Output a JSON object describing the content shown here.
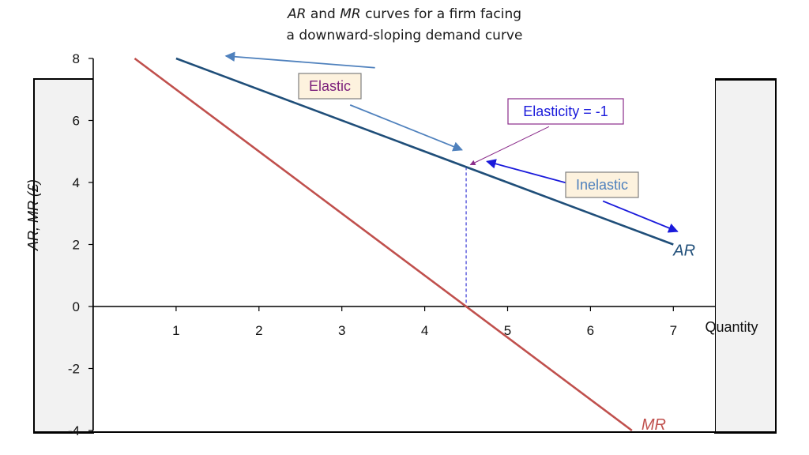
{
  "title": {
    "line1_ar": "AR",
    "line1_and": " and ",
    "line1_mr": "MR",
    "line1_rest": " curves for a firm facing",
    "line2": "a downward-sloping demand curve"
  },
  "chart_data": {
    "type": "line",
    "xlabel": "Quantity",
    "ylabel": "AR, MR (£)",
    "xlim": [
      0,
      7.5
    ],
    "ylim": [
      -4,
      8
    ],
    "x_ticks": [
      "1",
      "2",
      "3",
      "4",
      "5",
      "6",
      "7"
    ],
    "y_ticks": [
      "8",
      "6",
      "4",
      "2",
      "0",
      "-2",
      "-4"
    ],
    "series": [
      {
        "name": "AR",
        "color": "#1f4e79",
        "points": [
          [
            1,
            8
          ],
          [
            7,
            2
          ]
        ]
      },
      {
        "name": "MR",
        "color": "#c0504d",
        "points": [
          [
            0.5,
            8
          ],
          [
            6.5,
            -4
          ]
        ]
      }
    ],
    "unit_elastic_point": {
      "x": 4.5,
      "y": 4.5
    },
    "annotations": [
      {
        "id": "elastic",
        "text": "Elastic",
        "text_color": "#7b1f7b",
        "box_fill": "#fdf2de",
        "box_stroke": "#7f7f7f"
      },
      {
        "id": "unit",
        "text": "Elasticity = -1",
        "text_color": "#1a1adb",
        "box_fill": "#ffffff",
        "box_stroke": "#8a2b8a"
      },
      {
        "id": "inelastic",
        "text": "Inelastic",
        "text_color": "#4f81bd",
        "box_fill": "#fdf2de",
        "box_stroke": "#7f7f7f"
      }
    ],
    "arrows": [
      {
        "id": "elastic-arrow-up",
        "color": "#4f81bd",
        "from": [
          3.4,
          7.7
        ],
        "to": [
          1.6,
          8.08
        ]
      },
      {
        "id": "elastic-arrow-down",
        "color": "#4f81bd",
        "from": [
          3.1,
          6.5
        ],
        "to": [
          4.45,
          5.05
        ]
      },
      {
        "id": "unit-arrow",
        "color": "#8a2b8a",
        "from": [
          5.5,
          5.8
        ],
        "to": [
          4.55,
          4.57
        ]
      },
      {
        "id": "inelastic-arrow-up",
        "color": "#1a1adb",
        "from": [
          5.8,
          3.92
        ],
        "to": [
          4.75,
          4.68
        ]
      },
      {
        "id": "inelastic-arrow-down",
        "color": "#1a1adb",
        "from": [
          6.15,
          3.4
        ],
        "to": [
          7.05,
          2.42
        ]
      }
    ],
    "grid": false,
    "legend": "inline"
  }
}
